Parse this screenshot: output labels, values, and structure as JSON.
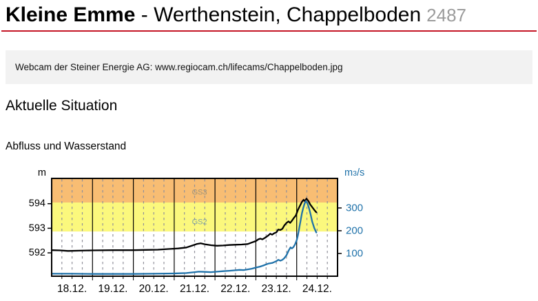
{
  "header": {
    "river": "Kleine Emme",
    "separator": "-",
    "station": "Werthenstein, Chappelboden",
    "station_number": "2487"
  },
  "webcam_note": "Webcam der Steiner Energie AG: www.regiocam.ch/lifecams/Chappelboden.jpg",
  "section_title": "Aktuelle Situation",
  "chart_title": "Abfluss und Wasserstand",
  "colors": {
    "accent_rule": "#c41425",
    "discharge_blue": "#1e71a9",
    "grid_gray": "#8f8f9a",
    "band_yellow": "#fbf87d",
    "band_orange": "#f8bd73"
  },
  "chart_data": {
    "type": "line",
    "title": "Abfluss und Wasserstand",
    "x_axis": {
      "tick_labels": [
        "18.12.",
        "19.12.",
        "20.12.",
        "21.12.",
        "22.12.",
        "23.12.",
        "24.12."
      ],
      "xlim": [
        18,
        25
      ],
      "minor_step_days": 0.25
    },
    "y_left": {
      "unit": "m",
      "ticks": [
        592,
        593,
        594
      ],
      "ylim": [
        591.05,
        595.03
      ],
      "color": "#000000"
    },
    "y_right": {
      "unit_parts": [
        "m",
        "3",
        "/s"
      ],
      "ticks": [
        100,
        200,
        300
      ],
      "ylim": [
        0,
        430
      ],
      "color": "#1e71a9"
    },
    "bands": [
      {
        "label": "GS2",
        "from": 592.87,
        "to": 594.05,
        "color": "#fbf87d",
        "label_color": "#7da0a4",
        "label_pos": [
          21.62,
          593.25
        ]
      },
      {
        "label": "GS3",
        "from": 594.05,
        "to": 595.03,
        "color": "#f8bd73",
        "label_color": "#9d9278",
        "label_pos": [
          21.62,
          594.45
        ]
      }
    ],
    "grid": {
      "minor_color": "#8f8f9a",
      "day_line_color": "#000000"
    },
    "series": [
      {
        "name": "Wasserstand",
        "axis": "left",
        "color": "#000000",
        "points": [
          [
            18.0,
            592.11
          ],
          [
            18.2,
            592.1
          ],
          [
            18.4,
            592.08
          ],
          [
            18.7,
            592.09
          ],
          [
            19.0,
            592.1
          ],
          [
            19.5,
            592.11
          ],
          [
            20.0,
            592.11
          ],
          [
            20.3,
            592.12
          ],
          [
            20.6,
            592.13
          ],
          [
            20.9,
            592.16
          ],
          [
            21.1,
            592.18
          ],
          [
            21.3,
            592.22
          ],
          [
            21.45,
            592.3
          ],
          [
            21.55,
            592.36
          ],
          [
            21.65,
            592.39
          ],
          [
            21.75,
            592.35
          ],
          [
            21.9,
            592.31
          ],
          [
            22.05,
            592.29
          ],
          [
            22.2,
            592.3
          ],
          [
            22.35,
            592.32
          ],
          [
            22.5,
            592.33
          ],
          [
            22.65,
            592.34
          ],
          [
            22.8,
            592.36
          ],
          [
            22.9,
            592.42
          ],
          [
            23.0,
            592.48
          ],
          [
            23.06,
            592.55
          ],
          [
            23.11,
            592.58
          ],
          [
            23.16,
            592.55
          ],
          [
            23.23,
            592.62
          ],
          [
            23.3,
            592.7
          ],
          [
            23.35,
            592.78
          ],
          [
            23.4,
            592.74
          ],
          [
            23.45,
            592.8
          ],
          [
            23.5,
            592.83
          ],
          [
            23.55,
            592.95
          ],
          [
            23.6,
            592.93
          ],
          [
            23.65,
            592.98
          ],
          [
            23.7,
            593.12
          ],
          [
            23.75,
            593.22
          ],
          [
            23.8,
            593.28
          ],
          [
            23.84,
            593.22
          ],
          [
            23.88,
            593.3
          ],
          [
            23.93,
            593.42
          ],
          [
            23.98,
            593.52
          ],
          [
            24.03,
            593.75
          ],
          [
            24.08,
            593.92
          ],
          [
            24.13,
            594.08
          ],
          [
            24.17,
            594.16
          ],
          [
            24.2,
            594.1
          ],
          [
            24.24,
            594.21
          ],
          [
            24.29,
            594.1
          ],
          [
            24.33,
            593.97
          ],
          [
            24.38,
            593.86
          ],
          [
            24.43,
            593.75
          ],
          [
            24.48,
            593.65
          ]
        ]
      },
      {
        "name": "Abfluss",
        "axis": "right",
        "color": "#1e71a9",
        "points": [
          [
            18.0,
            11
          ],
          [
            18.5,
            11
          ],
          [
            19.0,
            10
          ],
          [
            19.5,
            10
          ],
          [
            20.0,
            10
          ],
          [
            20.5,
            11
          ],
          [
            21.0,
            12
          ],
          [
            21.3,
            14
          ],
          [
            21.5,
            18
          ],
          [
            21.6,
            20
          ],
          [
            21.75,
            19
          ],
          [
            21.9,
            18
          ],
          [
            22.05,
            20
          ],
          [
            22.2,
            22
          ],
          [
            22.35,
            24
          ],
          [
            22.5,
            26
          ],
          [
            22.6,
            28
          ],
          [
            22.7,
            27
          ],
          [
            22.8,
            30
          ],
          [
            22.9,
            33
          ],
          [
            23.0,
            38
          ],
          [
            23.1,
            42
          ],
          [
            23.2,
            48
          ],
          [
            23.3,
            55
          ],
          [
            23.4,
            58
          ],
          [
            23.45,
            62
          ],
          [
            23.5,
            66
          ],
          [
            23.55,
            72
          ],
          [
            23.6,
            68
          ],
          [
            23.65,
            72
          ],
          [
            23.7,
            80
          ],
          [
            23.75,
            92
          ],
          [
            23.8,
            112
          ],
          [
            23.85,
            127
          ],
          [
            23.88,
            122
          ],
          [
            23.92,
            128
          ],
          [
            23.96,
            140
          ],
          [
            24.0,
            158
          ],
          [
            24.03,
            180
          ],
          [
            24.06,
            210
          ],
          [
            24.1,
            248
          ],
          [
            24.13,
            278
          ],
          [
            24.16,
            300
          ],
          [
            24.19,
            318
          ],
          [
            24.22,
            330
          ],
          [
            24.26,
            322
          ],
          [
            24.3,
            300
          ],
          [
            24.34,
            272
          ],
          [
            24.38,
            240
          ],
          [
            24.43,
            212
          ],
          [
            24.48,
            192
          ]
        ]
      }
    ]
  }
}
